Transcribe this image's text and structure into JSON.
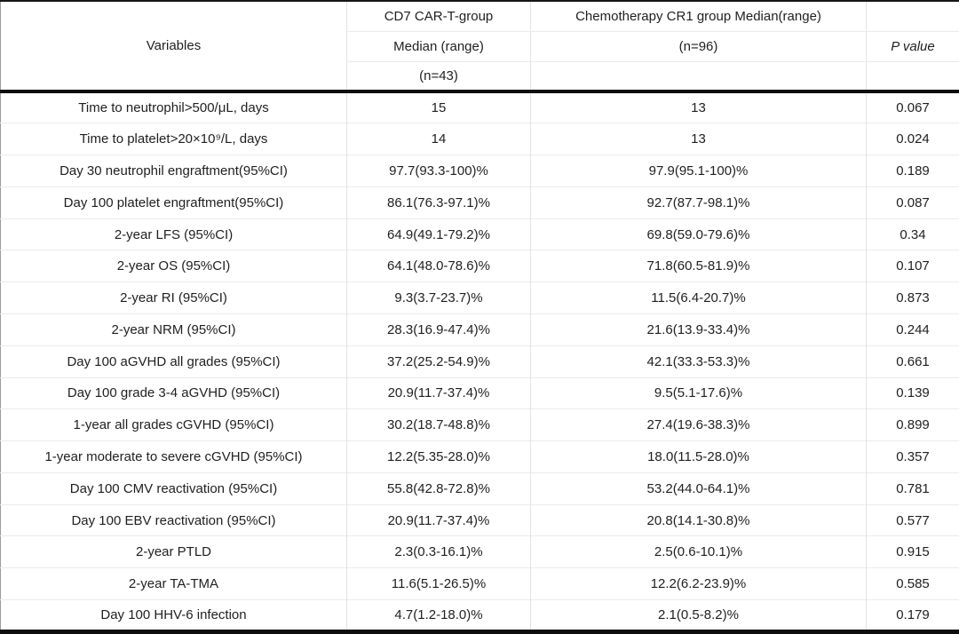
{
  "table": {
    "header": {
      "variables_label": "Variables",
      "car_t_lines": [
        "CD7 CAR-T-group",
        "Median (range)",
        "(n=43)"
      ],
      "chemo_lines": [
        "Chemotherapy CR1 group Median(range)",
        "(n=96)",
        ""
      ],
      "p_lines": [
        "",
        "P value",
        ""
      ]
    },
    "rows": [
      {
        "variable": "Time to neutrophil>500/μL, days",
        "car_t": "15",
        "chemo": "13",
        "p_value": "0.067"
      },
      {
        "variable": "Time to platelet>20×10⁹/L, days",
        "car_t": "14",
        "chemo": "13",
        "p_value": "0.024"
      },
      {
        "variable": "Day 30 neutrophil engraftment(95%CI)",
        "car_t": "97.7(93.3-100)%",
        "chemo": "97.9(95.1-100)%",
        "p_value": "0.189"
      },
      {
        "variable": "Day 100 platelet engraftment(95%CI)",
        "car_t": "86.1(76.3-97.1)%",
        "chemo": "92.7(87.7-98.1)%",
        "p_value": "0.087"
      },
      {
        "variable": "2-year LFS (95%CI)",
        "car_t": "64.9(49.1-79.2)%",
        "chemo": "69.8(59.0-79.6)%",
        "p_value": "0.34"
      },
      {
        "variable": "2-year OS (95%CI)",
        "car_t": "64.1(48.0-78.6)%",
        "chemo": "71.8(60.5-81.9)%",
        "p_value": "0.107"
      },
      {
        "variable": "2-year RI (95%CI)",
        "car_t": "9.3(3.7-23.7)%",
        "chemo": "11.5(6.4-20.7)%",
        "p_value": "0.873"
      },
      {
        "variable": "2-year NRM (95%CI)",
        "car_t": "28.3(16.9-47.4)%",
        "chemo": "21.6(13.9-33.4)%",
        "p_value": "0.244"
      },
      {
        "variable": "Day 100 aGVHD all grades (95%CI)",
        "car_t": "37.2(25.2-54.9)%",
        "chemo": "42.1(33.3-53.3)%",
        "p_value": "0.661"
      },
      {
        "variable": "Day 100 grade 3-4 aGVHD (95%CI)",
        "car_t": "20.9(11.7-37.4)%",
        "chemo": "9.5(5.1-17.6)%",
        "p_value": "0.139"
      },
      {
        "variable": "1-year all grades cGVHD (95%CI)",
        "car_t": "30.2(18.7-48.8)%",
        "chemo": "27.4(19.6-38.3)%",
        "p_value": "0.899"
      },
      {
        "variable": "1-year moderate to severe cGVHD (95%CI)",
        "car_t": "12.2(5.35-28.0)%",
        "chemo": "18.0(11.5-28.0)%",
        "p_value": "0.357"
      },
      {
        "variable": "Day 100 CMV reactivation (95%CI)",
        "car_t": "55.8(42.8-72.8)%",
        "chemo": "53.2(44.0-64.1)%",
        "p_value": "0.781"
      },
      {
        "variable": "Day 100 EBV reactivation (95%CI)",
        "car_t": "20.9(11.7-37.4)%",
        "chemo": "20.8(14.1-30.8)%",
        "p_value": "0.577"
      },
      {
        "variable": "2-year PTLD",
        "car_t": "2.3(0.3-16.1)%",
        "chemo": "2.5(0.6-10.1)%",
        "p_value": "0.915"
      },
      {
        "variable": "2-year TA-TMA",
        "car_t": "11.6(5.1-26.5)%",
        "chemo": "12.2(6.2-23.9)%",
        "p_value": "0.585"
      },
      {
        "variable": "Day 100 HHV-6 infection",
        "car_t": "4.7(1.2-18.0)%",
        "chemo": "2.1(0.5-8.2)%",
        "p_value": "0.179"
      }
    ]
  },
  "colors": {
    "heavy_rule": "#0d0d0d",
    "light_rule": "#ebebeb",
    "outer_side_rule": "#9b9b9b",
    "text": "#1f1f1f",
    "background": "#ffffff"
  }
}
